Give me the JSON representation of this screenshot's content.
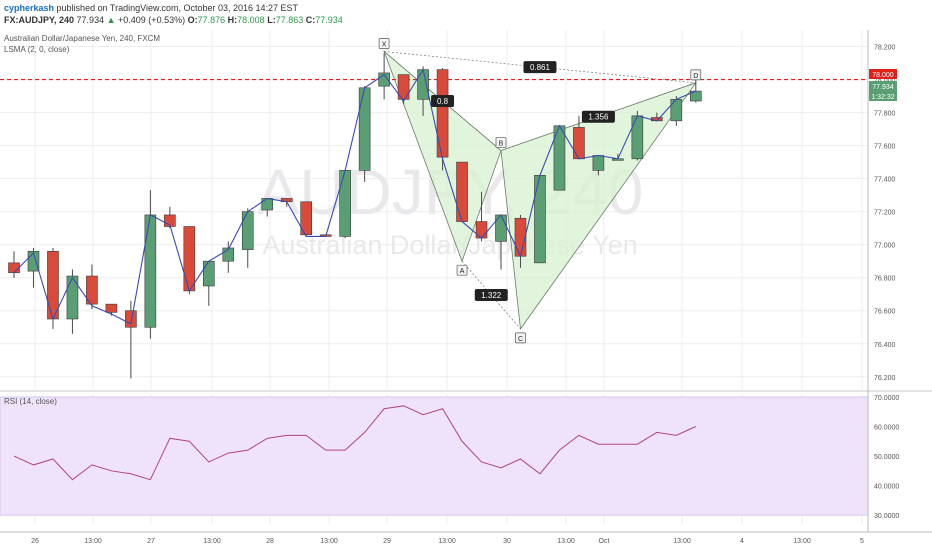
{
  "header": {
    "author": "cypherkash",
    "published": "published on TradingView.com, October 03, 2016 14:27 EST",
    "symbol": "FX:AUDJPY, 240",
    "last": "77.934",
    "change_arrow": "▲",
    "change": "+0.409 (+0.53%)",
    "open_label": "O:",
    "open": "77.876",
    "high_label": "H:",
    "high": "78.008",
    "low_label": "L:",
    "low": "77.863",
    "close_label": "C:",
    "close": "77.934",
    "instrument": "Australian Dollar/Japanese Yen, 240, FXCM",
    "indicator": "LSMA (2, 0, close)",
    "rsi_label": "RSI (14, close)"
  },
  "watermark": {
    "symbol": "AUDJPY, 240",
    "name": "Australian Dollar/Japanese Yen"
  },
  "price_badges": {
    "level": "78.000",
    "last": "77.934",
    "countdown": "1:32:32"
  },
  "colors": {
    "bull": "#5a9e74",
    "bear": "#d94a3a",
    "lsma": "#3a4bb0",
    "pattern_fill": "#d7f2d2",
    "pattern_line": "#6b7b6b",
    "level_line": "#e0201a",
    "rsi_bg": "#efe3fb",
    "rsi_line": "#b0457e"
  },
  "chart_data": [
    {
      "type": "candlestick",
      "title": "",
      "y_ticks": [
        "76.200",
        "76.400",
        "76.600",
        "76.800",
        "77.000",
        "77.200",
        "77.400",
        "77.600",
        "77.800",
        "78.000",
        "78.200"
      ],
      "ylim": [
        76.12,
        78.3
      ],
      "x_ticks": [
        "26",
        "13:00",
        "27",
        "13:00",
        "28",
        "13:00",
        "29",
        "13:00",
        "30",
        "13:00",
        "Oct",
        "13:00",
        "4",
        "13:00",
        "5"
      ],
      "bars": 40,
      "candles": [
        {
          "o": 76.89,
          "h": 76.96,
          "l": 76.8,
          "c": 76.83
        },
        {
          "o": 76.84,
          "h": 76.98,
          "l": 76.74,
          "c": 76.96
        },
        {
          "o": 76.96,
          "h": 76.98,
          "l": 76.49,
          "c": 76.55
        },
        {
          "o": 76.55,
          "h": 76.85,
          "l": 76.46,
          "c": 76.81
        },
        {
          "o": 76.81,
          "h": 76.88,
          "l": 76.61,
          "c": 76.64
        },
        {
          "o": 76.64,
          "h": 76.64,
          "l": 76.57,
          "c": 76.59
        },
        {
          "o": 76.6,
          "h": 76.66,
          "l": 76.19,
          "c": 76.5
        },
        {
          "o": 76.5,
          "h": 77.33,
          "l": 76.43,
          "c": 77.18
        },
        {
          "o": 77.18,
          "h": 77.23,
          "l": 77.1,
          "c": 77.11
        },
        {
          "o": 77.11,
          "h": 77.11,
          "l": 76.7,
          "c": 76.72
        },
        {
          "o": 76.75,
          "h": 76.9,
          "l": 76.63,
          "c": 76.9
        },
        {
          "o": 76.9,
          "h": 77.02,
          "l": 76.83,
          "c": 76.98
        },
        {
          "o": 76.97,
          "h": 77.22,
          "l": 76.86,
          "c": 77.2
        },
        {
          "o": 77.21,
          "h": 77.28,
          "l": 77.17,
          "c": 77.28
        },
        {
          "o": 77.28,
          "h": 77.28,
          "l": 77.23,
          "c": 77.26
        },
        {
          "o": 77.26,
          "h": 77.26,
          "l": 77.05,
          "c": 77.06
        },
        {
          "o": 77.06,
          "h": 77.06,
          "l": 77.05,
          "c": 77.05
        },
        {
          "o": 77.05,
          "h": 77.45,
          "l": 77.04,
          "c": 77.45
        },
        {
          "o": 77.45,
          "h": 77.96,
          "l": 77.38,
          "c": 77.95
        },
        {
          "o": 77.96,
          "h": 78.16,
          "l": 77.88,
          "c": 78.04
        },
        {
          "o": 78.03,
          "h": 78.03,
          "l": 77.85,
          "c": 77.88
        },
        {
          "o": 77.88,
          "h": 78.08,
          "l": 77.78,
          "c": 78.06
        },
        {
          "o": 78.06,
          "h": 78.07,
          "l": 77.45,
          "c": 77.53
        },
        {
          "o": 77.5,
          "h": 77.5,
          "l": 77.14,
          "c": 77.14
        },
        {
          "o": 77.14,
          "h": 77.32,
          "l": 77.02,
          "c": 77.04
        },
        {
          "o": 77.02,
          "h": 77.17,
          "l": 76.85,
          "c": 77.18
        },
        {
          "o": 77.16,
          "h": 77.18,
          "l": 76.86,
          "c": 76.93
        },
        {
          "o": 76.89,
          "h": 77.42,
          "l": 76.89,
          "c": 77.42
        },
        {
          "o": 77.33,
          "h": 77.72,
          "l": 77.33,
          "c": 77.72
        },
        {
          "o": 77.71,
          "h": 77.78,
          "l": 77.52,
          "c": 77.52
        },
        {
          "o": 77.45,
          "h": 77.54,
          "l": 77.42,
          "c": 77.54
        },
        {
          "o": 77.52,
          "h": 77.55,
          "l": 77.51,
          "c": 77.52
        },
        {
          "o": 77.52,
          "h": 77.81,
          "l": 77.51,
          "c": 77.78
        },
        {
          "o": 77.77,
          "h": 77.8,
          "l": 77.75,
          "c": 77.75
        },
        {
          "o": 77.75,
          "h": 77.9,
          "l": 77.72,
          "c": 77.88
        },
        {
          "o": 77.87,
          "h": 78.0,
          "l": 77.86,
          "c": 77.93
        }
      ],
      "lsma": [
        76.83,
        76.95,
        76.55,
        76.8,
        76.63,
        76.58,
        76.52,
        77.18,
        77.12,
        76.72,
        76.9,
        76.97,
        77.2,
        77.28,
        77.26,
        77.05,
        77.05,
        77.45,
        77.95,
        78.03,
        77.87,
        78.06,
        77.52,
        77.14,
        77.04,
        77.18,
        76.93,
        77.42,
        77.72,
        77.52,
        77.54,
        77.52,
        77.78,
        77.75,
        77.88,
        77.93
      ],
      "horizontal_line": 78.0,
      "harmonic_pattern": {
        "points": [
          {
            "label": "X",
            "bar": 19,
            "price": 78.17
          },
          {
            "label": "A",
            "bar": 23,
            "price": 76.9
          },
          {
            "label": "B",
            "bar": 25,
            "price": 77.57
          },
          {
            "label": "C",
            "bar": 26,
            "price": 76.49
          },
          {
            "label": "D",
            "bar": 35,
            "price": 77.98
          }
        ],
        "ratios": [
          {
            "label": "0.861",
            "from": "X",
            "to": "D"
          },
          {
            "label": "0.8",
            "from": "X",
            "to": "B"
          },
          {
            "label": "1.322",
            "from": "A",
            "to": "C"
          },
          {
            "label": "1.356",
            "from": "B",
            "to": "D"
          }
        ]
      }
    },
    {
      "type": "line",
      "title": "",
      "y_ticks": [
        "30.0000",
        "40.0000",
        "50.0000",
        "60.0000",
        "70.0000"
      ],
      "ylim": [
        27,
        71
      ],
      "values": [
        50,
        47,
        49,
        42,
        47,
        45,
        44,
        42,
        56,
        55,
        48,
        51,
        52,
        56,
        57,
        57,
        52,
        52,
        58,
        66,
        67,
        64,
        66,
        55,
        48,
        46,
        49,
        44,
        52,
        57,
        54,
        54,
        54,
        58,
        57,
        60
      ]
    }
  ]
}
